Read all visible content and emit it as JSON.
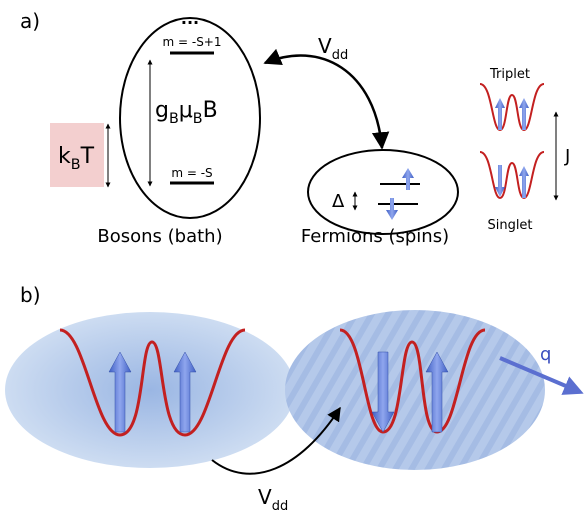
{
  "panel_a": {
    "label": "a)",
    "bosons": {
      "dots": "...",
      "top_level": "m = -S+1",
      "bottom_level": "m = -S",
      "gap": [
        "g",
        "B",
        "μ",
        "B",
        "B"
      ],
      "caption": "Bosons (bath)"
    },
    "thermal": [
      "k",
      "B",
      "T"
    ],
    "interaction": [
      "V",
      "dd"
    ],
    "fermions": {
      "delta": "Δ",
      "caption": "Fermions (spins)"
    },
    "states": {
      "triplet": "Triplet",
      "singlet": "Singlet",
      "coupling": "J"
    }
  },
  "panel_b": {
    "label": "b)",
    "wave_label": "q",
    "interaction": [
      "V",
      "dd"
    ]
  }
}
